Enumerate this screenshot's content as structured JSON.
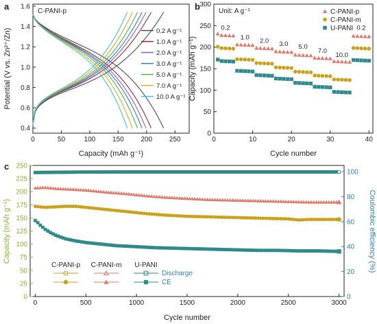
{
  "colors": {
    "c_pani_p": "#e07a6a",
    "c_pani_m": "#c9a21a",
    "u_pani": "#2f8a8a",
    "ce_axis": "#2f7fb0",
    "cap_axis": "#8ab629",
    "cd_curves": [
      "#4a4a4a",
      "#8c2d2d",
      "#8e5fb0",
      "#2c7fb8",
      "#4daf4a",
      "#e8a51f",
      "#3ec3d8"
    ]
  },
  "chart_data": [
    {
      "panel": "a",
      "type": "line",
      "annotation": "C-PANI-p",
      "xlabel": "Capacity (mAh g⁻¹)",
      "ylabel": "Potential (V vs. Zn²⁺/Zn)",
      "xlim": [
        0,
        275
      ],
      "ylim": [
        0.35,
        1.62
      ],
      "xticks": [
        "0",
        "50",
        "100",
        "150",
        "200",
        "250"
      ],
      "yticks": [
        "0.4",
        "0.6",
        "0.8",
        "1.0",
        "1.2",
        "1.4",
        "1.6"
      ],
      "legend_position": "right",
      "series": [
        {
          "name": "0.2 A g⁻¹",
          "max_capacity": 230
        },
        {
          "name": "1.0 A g⁻¹",
          "max_capacity": 208
        },
        {
          "name": "2.0 A g⁻¹",
          "max_capacity": 199
        },
        {
          "name": "3.0 A g⁻¹",
          "max_capacity": 192
        },
        {
          "name": "5.0 A g⁻¹",
          "max_capacity": 184
        },
        {
          "name": "7.0 A g⁻¹",
          "max_capacity": 175
        },
        {
          "name": "10.0 A g⁻¹",
          "max_capacity": 166
        }
      ]
    },
    {
      "panel": "b",
      "type": "scatter",
      "annotation": "Unit: A g⁻¹",
      "xlabel": "Cycle number",
      "ylabel": "Capacity (mAh g⁻¹)",
      "xlim": [
        0,
        41
      ],
      "ylim": [
        0,
        300
      ],
      "xticks": [
        "0",
        "10",
        "20",
        "30",
        "40"
      ],
      "yticks": [
        "0",
        "50",
        "100",
        "150",
        "200",
        "250",
        "300"
      ],
      "legend_position": "top-right",
      "rate_labels": [
        {
          "text": "0.2",
          "cycle": 3,
          "y": 240
        },
        {
          "text": "1.0",
          "cycle": 8,
          "y": 218
        },
        {
          "text": "2.0",
          "cycle": 13,
          "y": 210
        },
        {
          "text": "3.0",
          "cycle": 18,
          "y": 203
        },
        {
          "text": "5.0",
          "cycle": 23,
          "y": 196
        },
        {
          "text": "7.0",
          "cycle": 28,
          "y": 187
        },
        {
          "text": "10.0",
          "cycle": 33,
          "y": 177
        },
        {
          "text": "0.2",
          "cycle": 38,
          "y": 240
        }
      ],
      "rates_per_step": [
        0.2,
        1.0,
        2.0,
        3.0,
        5.0,
        7.0,
        10.0,
        0.2
      ],
      "series": [
        {
          "name": "C-PANI-p",
          "step_values": [
            228,
            206,
            198,
            190,
            182,
            175,
            167,
            226
          ]
        },
        {
          "name": "C-PANI-m",
          "step_values": [
            198,
            172,
            163,
            153,
            143,
            134,
            125,
            198
          ]
        },
        {
          "name": "U-PANI",
          "step_values": [
            168,
            145,
            135,
            127,
            117,
            108,
            96,
            170
          ]
        }
      ]
    },
    {
      "panel": "c",
      "type": "scatter",
      "xlabel": "Cycle number",
      "ylabel": "Capacity (mAh g⁻¹)",
      "y2label": "Coulombic efficiency (%)",
      "xlim": [
        -50,
        3050
      ],
      "ylim": [
        0,
        250
      ],
      "y2lim": [
        0,
        105
      ],
      "xticks": [
        "0",
        "500",
        "1000",
        "1500",
        "2000",
        "2500",
        "3000"
      ],
      "yticks": [
        "0",
        "25",
        "50",
        "75",
        "100",
        "125",
        "150",
        "175",
        "200",
        "225",
        "250"
      ],
      "y2ticks": [
        "0",
        "20",
        "40",
        "60",
        "80",
        "100"
      ],
      "legend": {
        "headers": [
          "C-PANI-p",
          "C-PANI-m",
          "U-PANI"
        ],
        "row_labels": [
          "Discharge",
          "CE"
        ]
      },
      "series": [
        {
          "name": "C-PANI-p CE",
          "axis": "right",
          "x": [
            0,
            500,
            1000,
            1500,
            2000,
            2500,
            3000
          ],
          "y": [
            99.5,
            99.8,
            99.8,
            99.8,
            99.8,
            99.8,
            99.8
          ]
        },
        {
          "name": "C-PANI-m CE",
          "axis": "right",
          "x": [
            0,
            500,
            1000,
            1500,
            2000,
            2500,
            3000
          ],
          "y": [
            99.4,
            99.8,
            99.8,
            99.8,
            99.8,
            99.8,
            99.8
          ]
        },
        {
          "name": "U-PANI CE",
          "axis": "right",
          "x": [
            0,
            500,
            1000,
            1500,
            2000,
            2500,
            3000
          ],
          "y": [
            99.3,
            99.7,
            99.8,
            99.8,
            99.8,
            99.8,
            99.8
          ]
        },
        {
          "name": "C-PANI-m Discharge",
          "axis": "left",
          "x": [
            0,
            100,
            200,
            300,
            400,
            500,
            700,
            900,
            1100,
            1300,
            1500,
            1700,
            1900,
            2100,
            2300,
            2500,
            2700,
            2900,
            3000
          ],
          "y": [
            207,
            208,
            206,
            205,
            204,
            203,
            199,
            196,
            192,
            189,
            187,
            185,
            184,
            183,
            182,
            181,
            180,
            180,
            180
          ]
        },
        {
          "name": "C-PANI-p Discharge",
          "axis": "left",
          "x": [
            0,
            100,
            200,
            300,
            400,
            500,
            700,
            900,
            1100,
            1300,
            1500,
            1700,
            1900,
            2100,
            2300,
            2500,
            2600,
            2700,
            2900,
            3000
          ],
          "y": [
            172,
            170,
            171,
            172,
            172,
            170,
            166,
            162,
            158,
            155,
            153,
            152,
            151,
            150,
            149,
            148,
            146,
            147,
            147,
            147
          ]
        },
        {
          "name": "U-PANI Discharge",
          "axis": "left",
          "x": [
            0,
            20,
            50,
            100,
            150,
            200,
            300,
            400,
            500,
            600,
            700,
            800,
            1000,
            1200,
            1400,
            1600,
            1800,
            2000,
            2200,
            2400,
            2600,
            2800,
            3000
          ],
          "y": [
            145,
            142,
            136,
            128,
            122,
            117,
            110,
            106,
            103,
            101,
            99,
            97,
            95,
            93,
            92,
            91,
            90,
            89,
            88,
            88,
            87,
            87,
            86
          ]
        }
      ]
    }
  ],
  "panels": {
    "a": {
      "letter": "a"
    },
    "b": {
      "letter": "b"
    },
    "c": {
      "letter": "c"
    }
  }
}
